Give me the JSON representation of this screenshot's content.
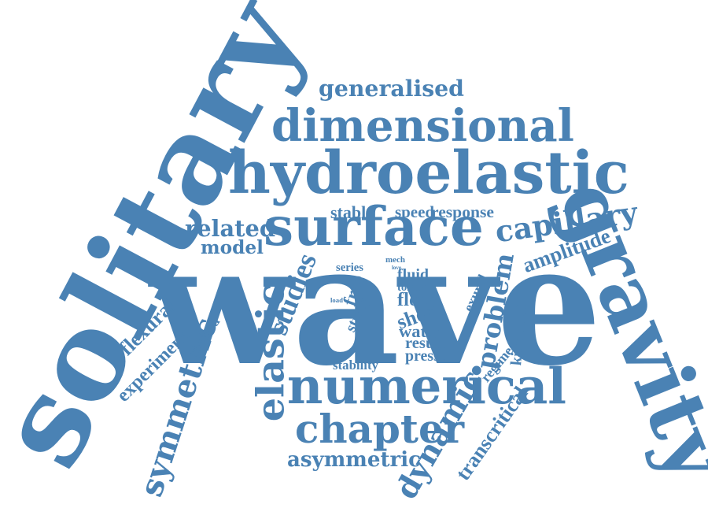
{
  "color": "#4a82b4",
  "words": [
    {
      "id": "wave",
      "text": "wave"
    },
    {
      "id": "solitary",
      "text": "solitary"
    },
    {
      "id": "gravity",
      "text": "gravity"
    },
    {
      "id": "hydroelastic",
      "text": "hydroelastic"
    },
    {
      "id": "dimensional",
      "text": "dimensional"
    },
    {
      "id": "surface",
      "text": "surface"
    },
    {
      "id": "numerical",
      "text": "numerical"
    },
    {
      "id": "chapter",
      "text": "chapter"
    },
    {
      "id": "elastic",
      "text": "elastic"
    },
    {
      "id": "symmetric",
      "text": "symmetric"
    },
    {
      "id": "generalised",
      "text": "generalised"
    },
    {
      "id": "capillary",
      "text": "capillary"
    },
    {
      "id": "related",
      "text": "related"
    },
    {
      "id": "model",
      "text": "model"
    },
    {
      "id": "asymmetric",
      "text": "asymmetric"
    },
    {
      "id": "dynamic",
      "text": "dynamic"
    },
    {
      "id": "problem",
      "text": "problem"
    },
    {
      "id": "stable",
      "text": "stable"
    },
    {
      "id": "speed",
      "text": "speed"
    },
    {
      "id": "response",
      "text": "response"
    },
    {
      "id": "amplitude",
      "text": "amplitude"
    },
    {
      "id": "studies",
      "text": "studies"
    },
    {
      "id": "flexural",
      "text": "flexural"
    },
    {
      "id": "experiment",
      "text": "experiment"
    },
    {
      "id": "method",
      "text": "method"
    },
    {
      "id": "series",
      "text": "series"
    },
    {
      "id": "free",
      "text": "free"
    },
    {
      "id": "fluid",
      "text": "fluid"
    },
    {
      "id": "toland",
      "text": "toland"
    },
    {
      "id": "flow",
      "text": "flow"
    },
    {
      "id": "sheet",
      "text": "sheet"
    },
    {
      "id": "water",
      "text": "water"
    },
    {
      "id": "result",
      "text": "result"
    },
    {
      "id": "pressure",
      "text": "pressure"
    },
    {
      "id": "stability",
      "text": "stability"
    },
    {
      "id": "study",
      "text": "study"
    },
    {
      "id": "load",
      "text": "load"
    },
    {
      "id": "mech",
      "text": "mech"
    },
    {
      "id": "love",
      "text": "love"
    },
    {
      "id": "exural",
      "text": "exural"
    },
    {
      "id": "kirchhoff",
      "text": "kirchhoff"
    },
    {
      "id": "regime",
      "text": "regime"
    },
    {
      "id": "transcritical",
      "text": "transcritical"
    }
  ]
}
